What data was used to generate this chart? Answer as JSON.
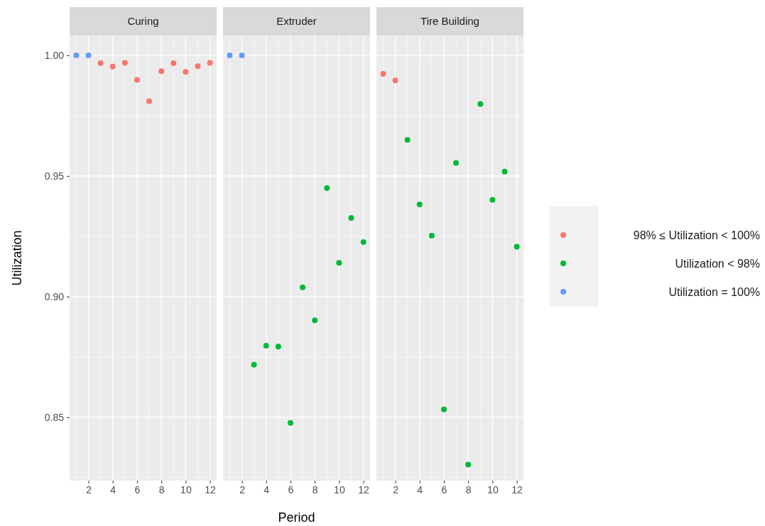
{
  "chart_data": [
    {
      "type": "scatter",
      "title": "Curing",
      "ylabel": "Utilization",
      "xlim": [
        0.45,
        12.55
      ],
      "ylim": [
        0.8238,
        1.0082
      ],
      "xticks": [
        2,
        4,
        6,
        8,
        10,
        12
      ],
      "yticks": [
        {
          "value": 0.85,
          "label": "0.85"
        },
        {
          "value": 0.9,
          "label": "0.90"
        },
        {
          "value": 0.95,
          "label": "0.95"
        },
        {
          "value": 1,
          "label": "1.00"
        }
      ],
      "grid": true,
      "marker": "circle",
      "legend": "right",
      "series": [
        {
          "color": "#f8766d",
          "x": [
            3,
            4,
            5,
            6,
            7,
            8,
            9,
            10,
            11,
            12
          ],
          "values": [
            0.9967,
            0.9953,
            0.9969,
            0.9898,
            0.981,
            0.9934,
            0.9967,
            0.9931,
            0.9955,
            0.9969
          ]
        },
        {
          "name": "Utilization = 100%",
          "color": "#619cff",
          "x": [
            1,
            2
          ],
          "values": [
            1,
            1
          ]
        }
      ]
    },
    {
      "type": "scatter",
      "title": "Extruder",
      "xlabel": "Period",
      "xlim": [
        0.45,
        12.55
      ],
      "ylim": [
        0.8238,
        1.0082
      ],
      "xticks": [
        2,
        4,
        6,
        8,
        10,
        12
      ],
      "yticks": [
        0.85,
        0.9,
        0.95,
        1
      ],
      "tick_labels": "x",
      "grid": true,
      "marker": "circle",
      "legend": false,
      "series": [
        {
          "color": "#00ba38",
          "x": [
            3,
            4,
            5,
            6,
            7,
            8,
            9,
            10,
            11,
            12
          ],
          "values": [
            0.8718,
            0.8797,
            0.8793,
            0.8477,
            0.9039,
            0.8902,
            0.945,
            0.914,
            0.9326,
            0.9226
          ]
        },
        {
          "color": "#619cff",
          "x": [
            1,
            2
          ],
          "values": [
            1,
            1
          ]
        }
      ]
    },
    {
      "type": "scatter",
      "title": "Tire Building",
      "xlim": [
        0.45,
        12.55
      ],
      "ylim": [
        0.8238,
        1.0082
      ],
      "xticks": [
        2,
        4,
        6,
        8,
        10,
        12
      ],
      "yticks": [
        0.85,
        0.9,
        0.95,
        1
      ],
      "tick_labels": "x",
      "grid": true,
      "marker": "circle",
      "legend": "right",
      "series": [
        {
          "name": "98% ≤ Utilization < 100%",
          "color": "#f8766d",
          "x": [
            1,
            2
          ],
          "values": [
            0.9923,
            0.9896
          ]
        },
        {
          "name": "Utilization < 98%",
          "color": "#00ba38",
          "x": [
            3,
            4,
            5,
            6,
            7,
            8,
            9,
            10,
            11,
            12
          ],
          "values": [
            0.965,
            0.9382,
            0.9253,
            0.8533,
            0.9554,
            0.8304,
            0.9798,
            0.9401,
            0.9518,
            0.9207
          ]
        }
      ]
    }
  ]
}
